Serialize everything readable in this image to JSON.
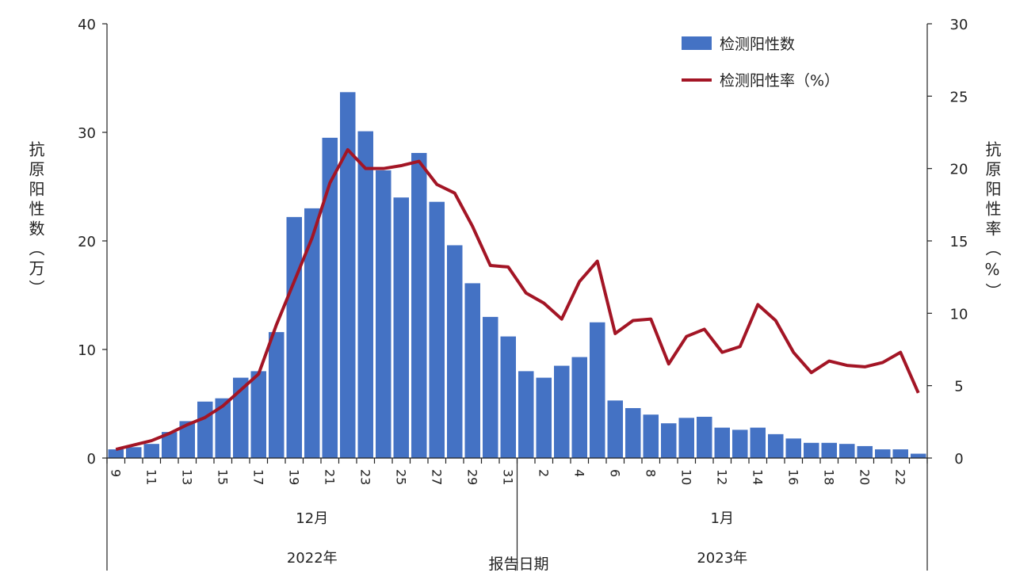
{
  "chart_data": {
    "type": "bar+line",
    "xlabel": "报告日期",
    "ylabel_left": "抗原阳性数（万）",
    "ylabel_right": "抗原阳性率（%）",
    "ylim_left": [
      0,
      40
    ],
    "yticks_left": [
      "0",
      "10",
      "20",
      "30",
      "40"
    ],
    "ylim_right": [
      0,
      30
    ],
    "yticks_right": [
      "0",
      "5",
      "10",
      "15",
      "20",
      "25",
      "30"
    ],
    "grid": false,
    "legend_placement": "top-right",
    "months": [
      {
        "label": "12月",
        "year": "2022年"
      },
      {
        "label": "1月",
        "year": "2023年"
      }
    ],
    "categories": [
      "12-09",
      "12-10",
      "12-11",
      "12-12",
      "12-13",
      "12-14",
      "12-15",
      "12-16",
      "12-17",
      "12-18",
      "12-19",
      "12-20",
      "12-21",
      "12-22",
      "12-23",
      "12-24",
      "12-25",
      "12-26",
      "12-27",
      "12-28",
      "12-29",
      "12-30",
      "12-31",
      "01-01",
      "01-02",
      "01-03",
      "01-04",
      "01-05",
      "01-06",
      "01-07",
      "01-08",
      "01-09",
      "01-10",
      "01-11",
      "01-12",
      "01-13",
      "01-14",
      "01-15",
      "01-16",
      "01-17",
      "01-18",
      "01-19",
      "01-20",
      "01-21",
      "01-22",
      "01-23"
    ],
    "tick_labels": [
      "9",
      "",
      "11",
      "",
      "13",
      "",
      "15",
      "",
      "17",
      "",
      "19",
      "",
      "21",
      "",
      "23",
      "",
      "25",
      "",
      "27",
      "",
      "29",
      "",
      "31",
      "",
      "2",
      "",
      "4",
      "",
      "6",
      "",
      "8",
      "",
      "10",
      "",
      "12",
      "",
      "14",
      "",
      "16",
      "",
      "18",
      "",
      "20",
      "",
      "22",
      ""
    ],
    "series": [
      {
        "name": "检测阳性数",
        "type": "bar",
        "axis": "left",
        "color": "#4472C4",
        "values": [
          0.8,
          1.0,
          1.3,
          2.4,
          3.4,
          5.2,
          5.5,
          7.4,
          8.0,
          11.6,
          22.2,
          23.0,
          29.5,
          33.7,
          30.1,
          26.5,
          24.0,
          28.1,
          23.6,
          19.6,
          16.1,
          13.0,
          11.2,
          8.0,
          7.4,
          8.5,
          9.3,
          12.5,
          5.3,
          4.6,
          4.0,
          3.2,
          3.7,
          3.8,
          2.8,
          2.6,
          2.8,
          2.2,
          1.8,
          1.4,
          1.4,
          1.3,
          1.1,
          0.8,
          0.8,
          0.4
        ]
      },
      {
        "name": "检测阳性率（%）",
        "type": "line",
        "axis": "right",
        "color": "#A31525",
        "values": [
          0.6,
          0.9,
          1.2,
          1.7,
          2.3,
          2.8,
          3.6,
          4.7,
          5.8,
          9.2,
          12.2,
          15.2,
          19.0,
          21.3,
          20.0,
          20.0,
          20.2,
          20.5,
          18.9,
          18.3,
          16.0,
          13.3,
          13.2,
          11.4,
          10.7,
          9.6,
          12.2,
          13.6,
          8.6,
          9.5,
          9.6,
          6.5,
          8.4,
          8.9,
          7.3,
          7.7,
          10.6,
          9.5,
          7.3,
          5.9,
          6.7,
          6.4,
          6.3,
          6.6,
          7.3,
          4.5
        ]
      }
    ]
  }
}
